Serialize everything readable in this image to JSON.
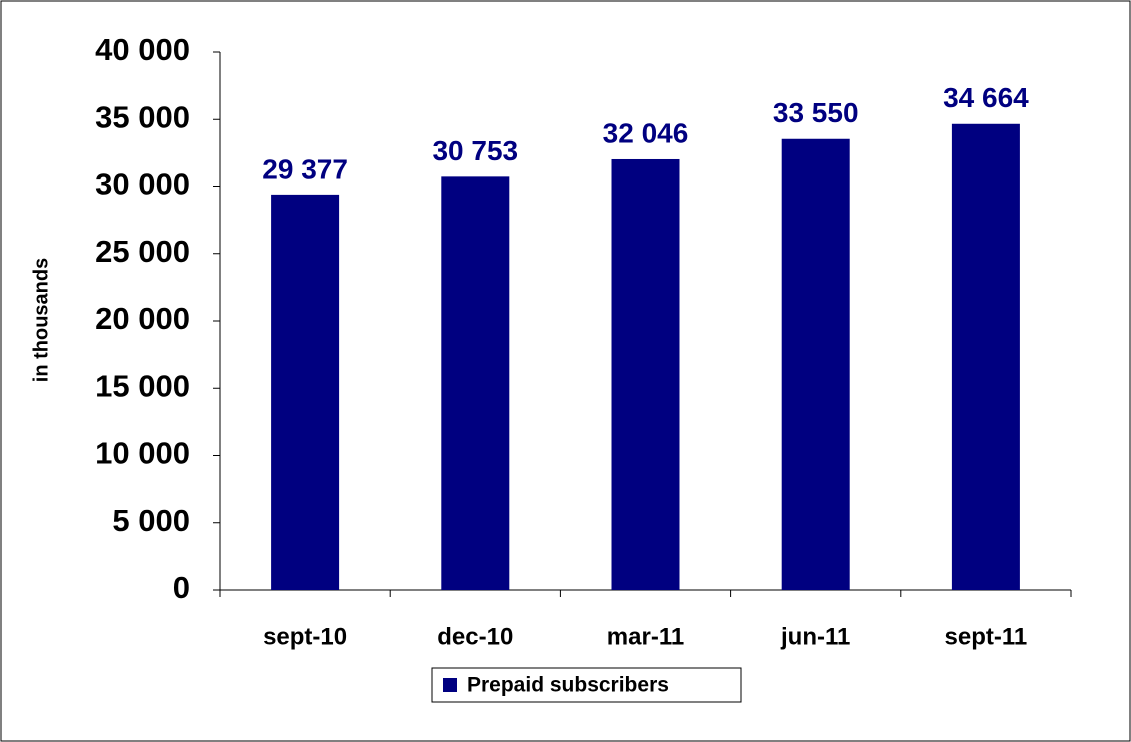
{
  "chart_data": {
    "type": "bar",
    "y_label": "in thousands",
    "categories": [
      "sept-10",
      "dec-10",
      "mar-11",
      "jun-11",
      "sept-11"
    ],
    "series": [
      {
        "name": "Prepaid subscribers",
        "color": "#000080",
        "values": [
          29377,
          30753,
          32046,
          33550,
          34664
        ],
        "value_labels": [
          "29 377",
          "30 753",
          "32 046",
          "33 550",
          "34 664"
        ]
      }
    ],
    "ylim": [
      0,
      40000
    ],
    "yticks": [
      0,
      {
        "value": 5000,
        "label": "5 000"
      },
      {
        "value": 10000,
        "label": "10 000"
      },
      {
        "value": 15000,
        "label": "15 000"
      },
      {
        "value": 20000,
        "label": "20 000"
      },
      {
        "value": 25000,
        "label": "25 000"
      },
      {
        "value": 30000,
        "label": "30 000"
      },
      {
        "value": 35000,
        "label": "35 000"
      },
      {
        "value": 40000,
        "label": "40 000"
      }
    ],
    "legend": "bottom",
    "grid": false
  }
}
